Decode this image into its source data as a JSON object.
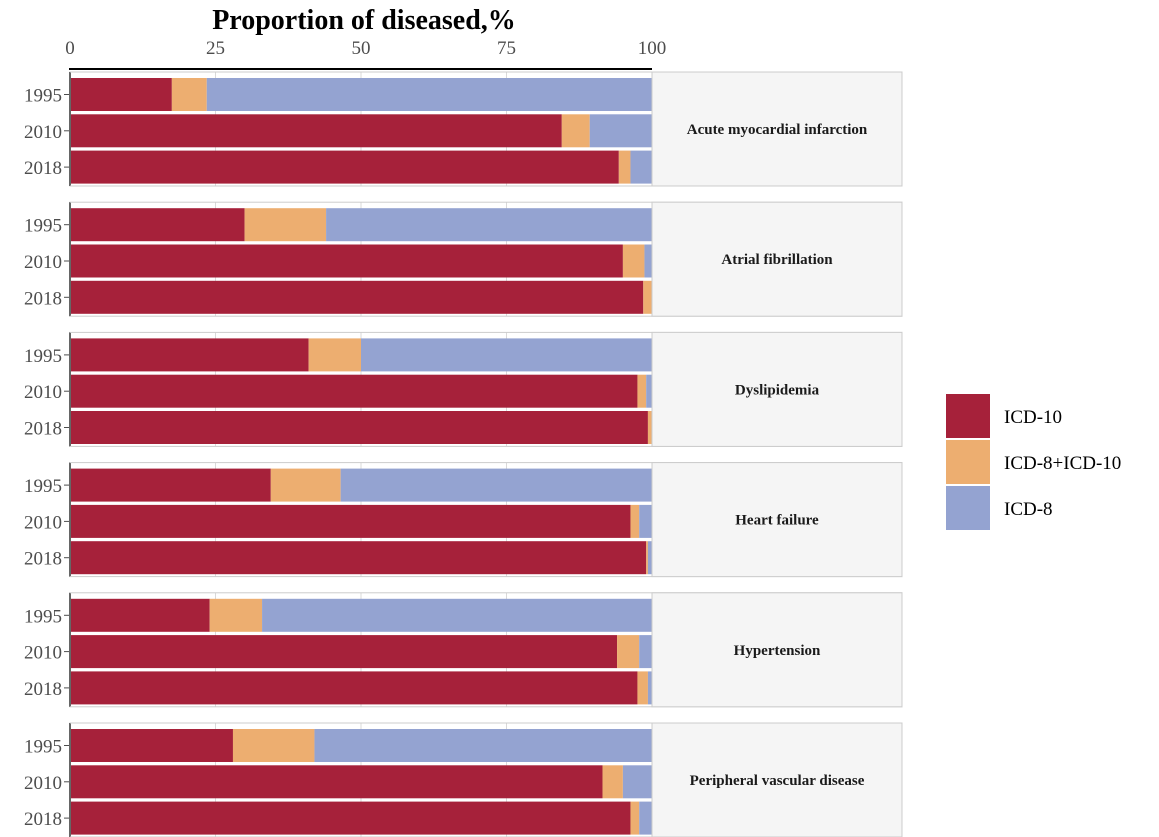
{
  "chart_data": {
    "type": "bar",
    "orientation": "horizontal",
    "stacked": true,
    "title": "",
    "xlabel": "Proportion of diseased,%",
    "ylabel": "",
    "xlim": [
      0,
      100
    ],
    "xticks": [
      "0",
      "25",
      "50",
      "75",
      "100"
    ],
    "categories": [
      "1995",
      "2010",
      "2018"
    ],
    "legend": {
      "position": "right",
      "entries": [
        {
          "name": "ICD-10",
          "color": "#a6213a"
        },
        {
          "name": "ICD-8+ICD-10",
          "color": "#edae70"
        },
        {
          "name": "ICD-8",
          "color": "#94a3d1"
        }
      ]
    },
    "facets": [
      {
        "label": "Acute myocardial infarction",
        "bars": [
          {
            "year": "1995",
            "ICD-10": 17.5,
            "ICD-8+ICD-10": 6.0,
            "ICD-8": 76.5
          },
          {
            "year": "2010",
            "ICD-10": 84.5,
            "ICD-8+ICD-10": 4.8,
            "ICD-8": 10.7
          },
          {
            "year": "2018",
            "ICD-10": 94.3,
            "ICD-8+ICD-10": 2.0,
            "ICD-8": 3.7
          }
        ]
      },
      {
        "label": "Atrial fibrillation",
        "bars": [
          {
            "year": "1995",
            "ICD-10": 30.0,
            "ICD-8+ICD-10": 14.0,
            "ICD-8": 56.0
          },
          {
            "year": "2010",
            "ICD-10": 95.0,
            "ICD-8+ICD-10": 3.7,
            "ICD-8": 1.3
          },
          {
            "year": "2018",
            "ICD-10": 98.5,
            "ICD-8+ICD-10": 1.5,
            "ICD-8": 0.0
          }
        ]
      },
      {
        "label": "Dyslipidemia",
        "bars": [
          {
            "year": "1995",
            "ICD-10": 41.0,
            "ICD-8+ICD-10": 9.0,
            "ICD-8": 50.0
          },
          {
            "year": "2010",
            "ICD-10": 97.5,
            "ICD-8+ICD-10": 1.5,
            "ICD-8": 1.0
          },
          {
            "year": "2018",
            "ICD-10": 99.3,
            "ICD-8+ICD-10": 0.7,
            "ICD-8": 0.0
          }
        ]
      },
      {
        "label": "Heart failure",
        "bars": [
          {
            "year": "1995",
            "ICD-10": 34.5,
            "ICD-8+ICD-10": 12.0,
            "ICD-8": 53.5
          },
          {
            "year": "2010",
            "ICD-10": 96.3,
            "ICD-8+ICD-10": 1.5,
            "ICD-8": 2.2
          },
          {
            "year": "2018",
            "ICD-10": 99.0,
            "ICD-8+ICD-10": 0.3,
            "ICD-8": 0.7
          }
        ]
      },
      {
        "label": "Hypertension",
        "bars": [
          {
            "year": "1995",
            "ICD-10": 24.0,
            "ICD-8+ICD-10": 9.0,
            "ICD-8": 67.0
          },
          {
            "year": "2010",
            "ICD-10": 94.0,
            "ICD-8+ICD-10": 3.8,
            "ICD-8": 2.2
          },
          {
            "year": "2018",
            "ICD-10": 97.5,
            "ICD-8+ICD-10": 1.8,
            "ICD-8": 0.7
          }
        ]
      },
      {
        "label": "Peripheral vascular disease",
        "bars": [
          {
            "year": "1995",
            "ICD-10": 28.0,
            "ICD-8+ICD-10": 14.0,
            "ICD-8": 58.0
          },
          {
            "year": "2010",
            "ICD-10": 91.5,
            "ICD-8+ICD-10": 3.5,
            "ICD-8": 5.0
          },
          {
            "year": "2018",
            "ICD-10": 96.3,
            "ICD-8+ICD-10": 1.5,
            "ICD-8": 2.2
          }
        ]
      }
    ]
  }
}
